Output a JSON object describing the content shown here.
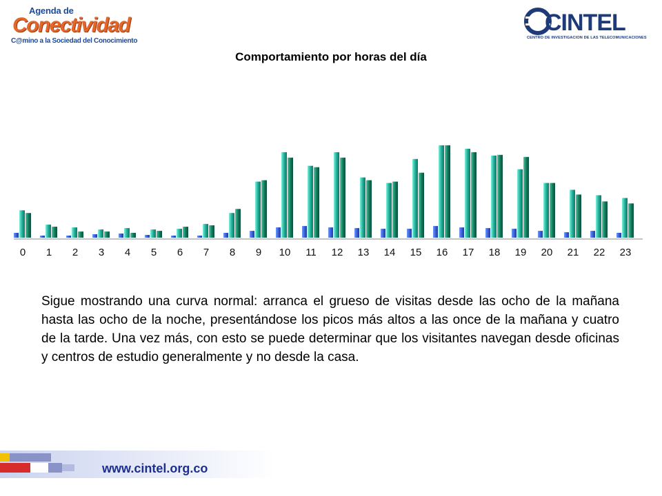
{
  "logos": {
    "left": {
      "line1": "Agenda de",
      "line2": "Conectividad",
      "line3": "C@mino a la Sociedad del Conocimiento"
    },
    "right": {
      "brand": "CINTEL",
      "subtitle": "CENTRO DE INVESTIGACION DE LAS TELECOMUNICACIONES"
    }
  },
  "title": "Comportamiento por horas del día",
  "chart_data": {
    "type": "bar",
    "categories": [
      "0",
      "1",
      "2",
      "3",
      "4",
      "5",
      "6",
      "7",
      "8",
      "9",
      "10",
      "11",
      "12",
      "13",
      "14",
      "15",
      "16",
      "17",
      "18",
      "19",
      "20",
      "21",
      "22",
      "23"
    ],
    "series": [
      {
        "values": [
          7,
          3,
          3,
          5,
          6,
          4,
          3,
          3,
          7,
          10,
          15,
          17,
          15,
          14,
          13,
          13,
          17,
          15,
          14,
          13,
          10,
          8,
          10,
          7
        ],
        "color": "#3a63d6"
      },
      {
        "values": [
          40,
          19,
          15,
          12,
          14,
          12,
          13,
          20,
          36,
          82,
          125,
          105,
          125,
          88,
          80,
          115,
          135,
          130,
          120,
          100,
          80,
          70,
          62,
          58
        ],
        "color": "#22b09a"
      },
      {
        "values": [
          36,
          16,
          9,
          9,
          7,
          10,
          16,
          18,
          42,
          84,
          117,
          103,
          117,
          84,
          82,
          95,
          135,
          125,
          121,
          118,
          80,
          63,
          53,
          50
        ],
        "color": "#138060"
      }
    ],
    "ylim": [
      0,
      145
    ],
    "grid": false,
    "legend": "none"
  },
  "body_text": "Sigue mostrando una curva normal: arranca el grueso de visitas desde las ocho de la mañana hasta las ocho de la noche, presentándose los picos más altos a las once de la mañana y cuatro de la tarde. Una vez más, con esto se puede determinar que los visitantes navegan desde oficinas y centros de estudio generalmente y no desde la casa.",
  "footer": {
    "url": "www.cintel.org.co"
  }
}
